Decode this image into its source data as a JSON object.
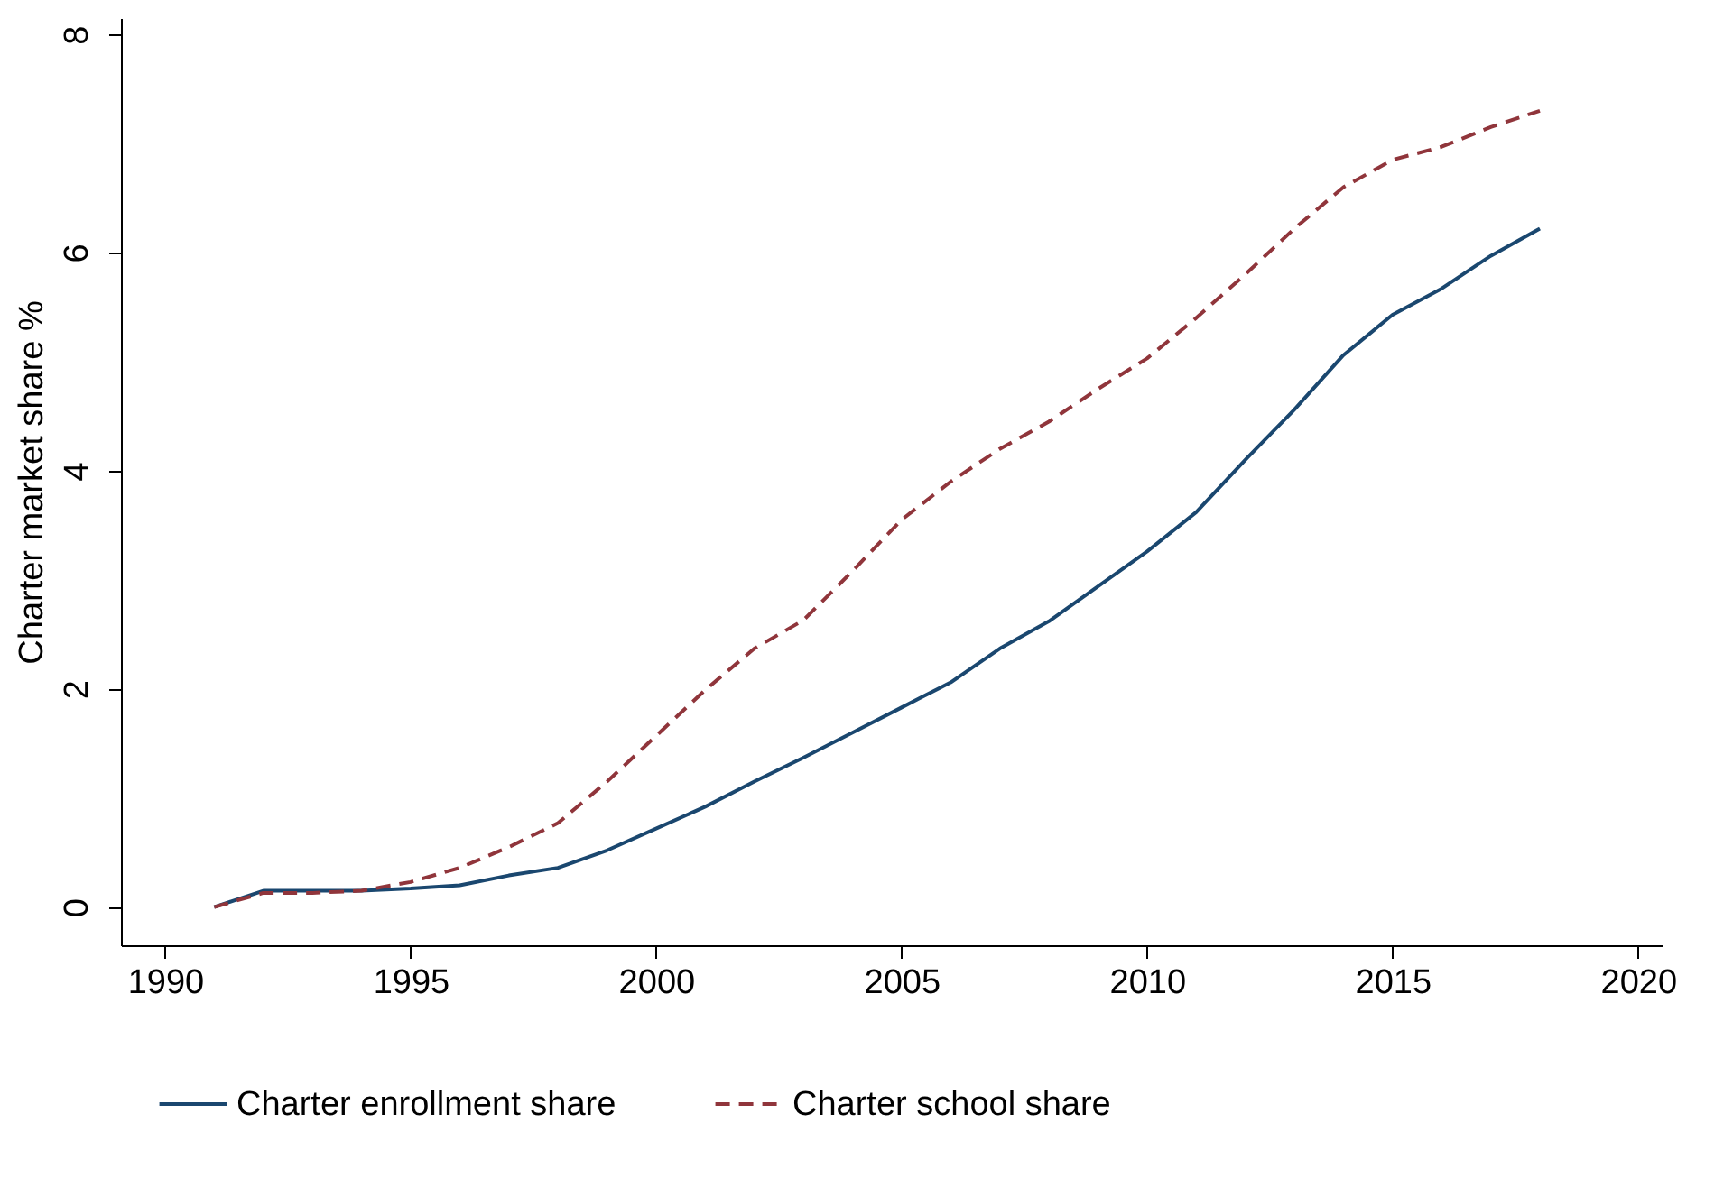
{
  "chart_data": {
    "type": "line",
    "ylabel": "Charter market share %",
    "x": [
      1991,
      1992,
      1993,
      1994,
      1995,
      1996,
      1997,
      1998,
      1999,
      2000,
      2001,
      2002,
      2003,
      2004,
      2005,
      2006,
      2007,
      2008,
      2009,
      2010,
      2011,
      2012,
      2013,
      2014,
      2015,
      2016,
      2017,
      2018
    ],
    "series": [
      {
        "name": "Charter enrollment share",
        "color": "#1a476f",
        "line_style": "solid",
        "values": [
          0,
          0.15,
          0.15,
          0.15,
          0.17,
          0.2,
          0.29,
          0.36,
          0.52,
          0.72,
          0.92,
          1.15,
          1.37,
          1.6,
          1.83,
          2.06,
          2.37,
          2.62,
          2.94,
          3.26,
          3.62,
          4.1,
          4.56,
          5.06,
          5.43,
          5.67,
          5.97,
          6.22
        ]
      },
      {
        "name": "Charter school share",
        "color": "#90353b",
        "line_style": "dashed",
        "values": [
          0,
          0.13,
          0.13,
          0.15,
          0.23,
          0.36,
          0.55,
          0.77,
          1.15,
          1.57,
          1.99,
          2.37,
          2.63,
          3.08,
          3.55,
          3.9,
          4.2,
          4.45,
          4.75,
          5.03,
          5.4,
          5.8,
          6.22,
          6.6,
          6.85,
          6.97,
          7.15,
          7.3
        ]
      }
    ],
    "xlim": [
      1989.1,
      2020.5
    ],
    "ylim": [
      -0.35,
      8.15
    ],
    "xticks": [
      1990,
      1995,
      2000,
      2005,
      2010,
      2015,
      2020
    ],
    "yticks": [
      0,
      2,
      4,
      6,
      8
    ],
    "grid": false,
    "legend": "bottom"
  }
}
